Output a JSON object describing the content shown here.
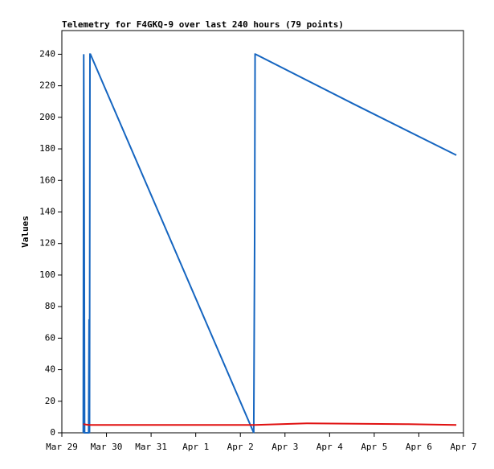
{
  "chart_data": {
    "type": "line",
    "title": "Telemetry for F4GKQ-9 over last 240 hours (79 points)",
    "y_label": "Values",
    "xlim": [
      0,
      9
    ],
    "xticks": [
      {
        "value": 0,
        "label": "Mar 29"
      },
      {
        "value": 1,
        "label": "Mar 30"
      },
      {
        "value": 2,
        "label": "Mar 31"
      },
      {
        "value": 3,
        "label": "Apr 1"
      },
      {
        "value": 4,
        "label": "Apr 2"
      },
      {
        "value": 5,
        "label": "Apr 3"
      },
      {
        "value": 6,
        "label": "Apr 4"
      },
      {
        "value": 7,
        "label": "Apr 5"
      },
      {
        "value": 8,
        "label": "Apr 6"
      },
      {
        "value": 9,
        "label": "Apr 7"
      }
    ],
    "ylim": [
      0,
      255
    ],
    "yticks": [
      0,
      20,
      40,
      60,
      80,
      100,
      120,
      140,
      160,
      180,
      200,
      220,
      240
    ],
    "grid": false,
    "series": [
      {
        "color": "#1565c0",
        "x": [
          0.48,
          0.49,
          0.5,
          0.51,
          0.6,
          0.61,
          0.62,
          0.63,
          0.64,
          4.3,
          4.32,
          4.33,
          4.34,
          6.5,
          8.84
        ],
        "values": [
          0,
          240,
          145,
          0,
          0,
          72,
          0,
          240,
          240,
          0,
          121,
          240,
          240,
          209,
          176
        ]
      },
      {
        "color": "#e01010",
        "x": [
          0.48,
          0.6,
          4.32,
          5.5,
          7.7,
          8.84
        ],
        "values": [
          5.5,
          5,
          5,
          6,
          5.5,
          5
        ]
      }
    ]
  }
}
